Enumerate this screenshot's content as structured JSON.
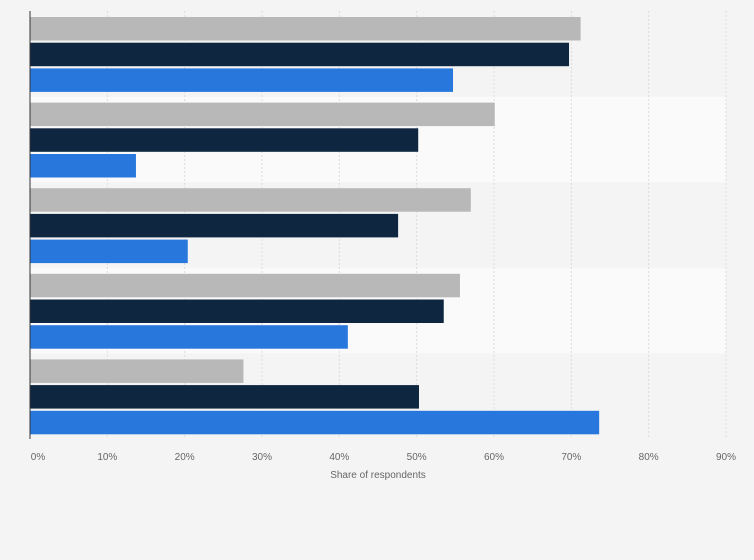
{
  "chart_data": {
    "type": "bar",
    "orientation": "horizontal",
    "categories": [
      "",
      "",
      "",
      "",
      ""
    ],
    "series": [
      {
        "values": [
          71.2,
          60.1,
          57.0,
          55.6,
          27.6
        ],
        "color": "#b8b8b8"
      },
      {
        "values": [
          69.7,
          50.2,
          47.6,
          53.5,
          50.3
        ],
        "color": "#0e2640"
      },
      {
        "values": [
          54.7,
          13.7,
          20.4,
          41.1,
          73.6
        ],
        "color": "#2877dc"
      }
    ],
    "xlabel": "Share of respondents",
    "xlim": [
      0,
      90
    ],
    "tick_labels": [
      "0%",
      "10%",
      "20%",
      "30%",
      "40%",
      "50%",
      "60%",
      "70%",
      "80%",
      "90%"
    ],
    "grid": true,
    "band_colors": [
      "#f4f4f4",
      "#fafafa"
    ]
  }
}
